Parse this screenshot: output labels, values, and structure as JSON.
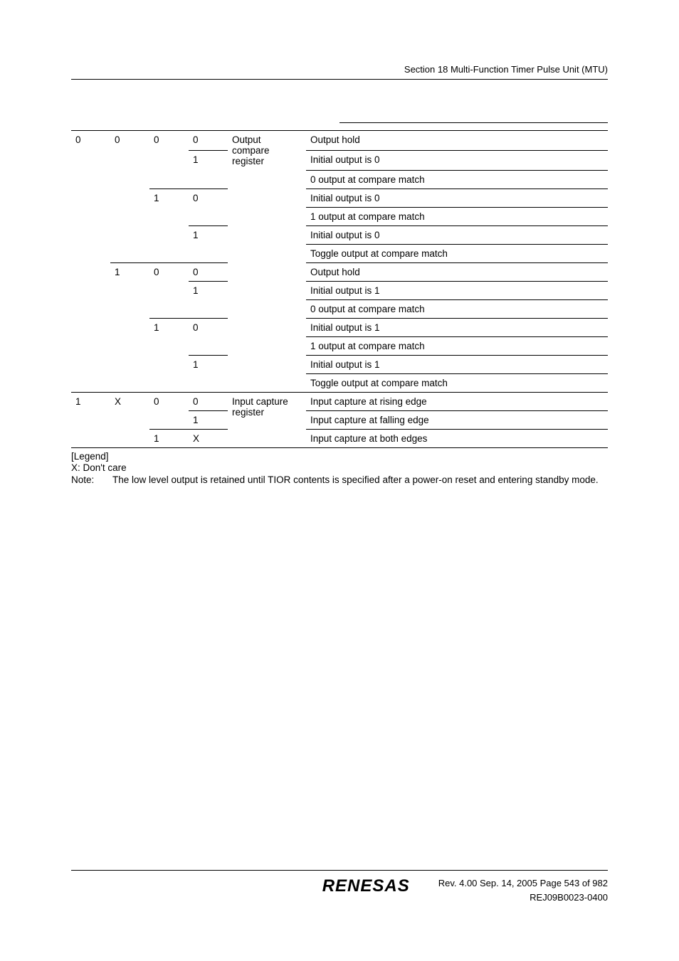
{
  "header": {
    "section_title": "Section 18   Multi-Function Timer Pulse Unit (MTU)"
  },
  "table": {
    "group_output": {
      "bit3": "0",
      "bit2a": "0",
      "bit2b": "1",
      "func_line1": "Output",
      "func_line2": "compare register",
      "block_00": {
        "bit1": "0",
        "r0": {
          "bit0": "0",
          "desc": "Output hold"
        },
        "r1": {
          "bit0": "1",
          "desc_a": "Initial output is 0",
          "desc_b": "0 output at compare match"
        }
      },
      "block_01": {
        "bit1": "1",
        "r0": {
          "bit0": "0",
          "desc_a": "Initial output is 0",
          "desc_b": "1 output at compare match"
        },
        "r1": {
          "bit0": "1",
          "desc_a": "Initial output is 0",
          "desc_b": "Toggle output at compare match"
        }
      },
      "block_10": {
        "bit1": "0",
        "r0": {
          "bit0": "0",
          "desc": "Output hold"
        },
        "r1": {
          "bit0": "1",
          "desc_a": "Initial output is 1",
          "desc_b": "0 output at compare match"
        }
      },
      "block_11": {
        "bit1": "1",
        "r0": {
          "bit0": "0",
          "desc_a": "Initial output is 1",
          "desc_b": "1 output at compare match"
        },
        "r1": {
          "bit0": "1",
          "desc_a": "Initial output is 1",
          "desc_b": "Toggle output at compare match"
        }
      }
    },
    "group_input": {
      "bit3": "1",
      "bit2": "X",
      "func_line1": "Input capture",
      "func_line2": "register",
      "block_0": {
        "bit1": "0",
        "r0": {
          "bit0": "0",
          "desc": "Input capture at rising edge"
        },
        "r1": {
          "bit0": "1",
          "desc": "Input capture at falling edge"
        }
      },
      "block_1": {
        "bit1": "1",
        "r0": {
          "bit0": "X",
          "desc": "Input capture at both edges"
        }
      }
    }
  },
  "legend": {
    "title": "[Legend]",
    "dont_care": "X: Don't care",
    "note_label": "Note:",
    "note_text": "The low level output is retained until TIOR contents is specified after a power-on reset and entering standby mode."
  },
  "footer": {
    "logo": "RENESAS",
    "rev_info": "Rev. 4.00  Sep. 14, 2005  Page 543 of 982",
    "doc_id": "REJ09B0023-0400"
  },
  "colors": {
    "text": "#000000",
    "background": "#ffffff",
    "border": "#000000"
  }
}
